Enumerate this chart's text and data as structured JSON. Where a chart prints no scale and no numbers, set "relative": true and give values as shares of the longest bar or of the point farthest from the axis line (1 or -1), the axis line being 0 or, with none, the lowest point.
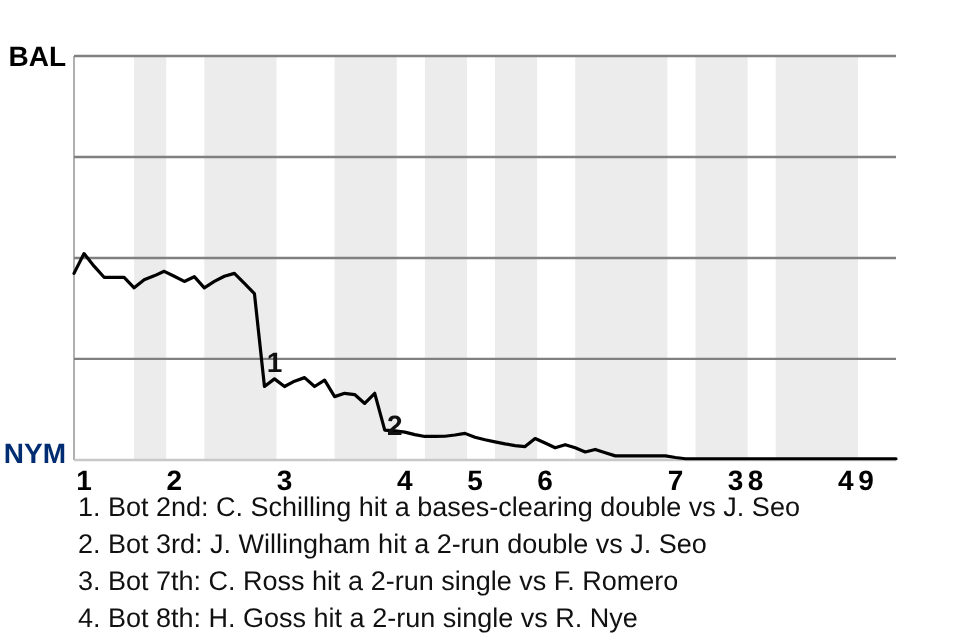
{
  "chart_data": {
    "type": "line",
    "relative": true,
    "categories": [
      null,
      "1",
      null,
      null,
      null,
      null,
      null,
      null,
      null,
      null,
      "2",
      null,
      null,
      null,
      null,
      null,
      null,
      null,
      null,
      null,
      null,
      "3",
      null,
      null,
      null,
      null,
      null,
      null,
      null,
      null,
      null,
      null,
      null,
      "4",
      null,
      null,
      null,
      null,
      null,
      null,
      "5",
      null,
      null,
      null,
      null,
      null,
      null,
      "6",
      null,
      null,
      null,
      null,
      null,
      null,
      null,
      null,
      null,
      null,
      null,
      null,
      "7",
      null,
      null,
      null,
      null,
      null,
      "3",
      null,
      "8",
      null,
      null,
      null,
      null,
      null,
      null,
      null,
      null,
      "4",
      null,
      "9",
      null,
      null,
      null
    ],
    "series": [
      {
        "color": "#000000",
        "values": [
          0.904,
          1,
          0.939,
          0.885,
          0.885,
          0.885,
          0.834,
          0.873,
          0.892,
          0.914,
          0.89,
          0.865,
          0.888,
          0.834,
          0.865,
          0.89,
          0.904,
          0.855,
          0.806,
          0.356,
          0.393,
          0.356,
          0.382,
          0.399,
          0.356,
          0.387,
          0.307,
          0.323,
          0.317,
          0.274,
          0.323,
          0.145,
          0.141,
          0.135,
          0.123,
          0.114,
          0.114,
          0.115,
          0.121,
          0.129,
          0.11,
          0.098,
          0.088,
          0.078,
          0.07,
          0.065,
          0.104,
          0.082,
          0.059,
          0.074,
          0.059,
          0.039,
          0.051,
          0.035,
          0.02,
          0.02,
          0.02,
          0.02,
          0.02,
          0.02,
          0.012,
          0.006,
          0.006,
          0.006,
          0.006,
          0.006,
          0.006,
          0.006,
          0.006,
          0.006,
          0.006,
          0.006,
          0.006,
          0.006,
          0.006,
          0.006,
          0.006,
          0.006,
          0.006,
          0.006,
          0.006,
          0.006,
          0.006
        ]
      }
    ],
    "ref_lines": [
      {
        "axis": "y",
        "value": 0.49,
        "color": "#808080"
      }
    ],
    "annotations": [
      "BAL",
      "NYM",
      "1",
      "2",
      "1. Bot 2nd: C. Schilling hit a bases-clearing double vs J. Seo",
      "2. Bot 3rd: J. Willingham hit a 2-run double vs J. Seo",
      "3. Bot 7th: C. Ross hit a 2-run single vs F. Romero",
      "4. Bot 8th: H. Goss hit a 2-run single vs R. Nye"
    ]
  }
}
